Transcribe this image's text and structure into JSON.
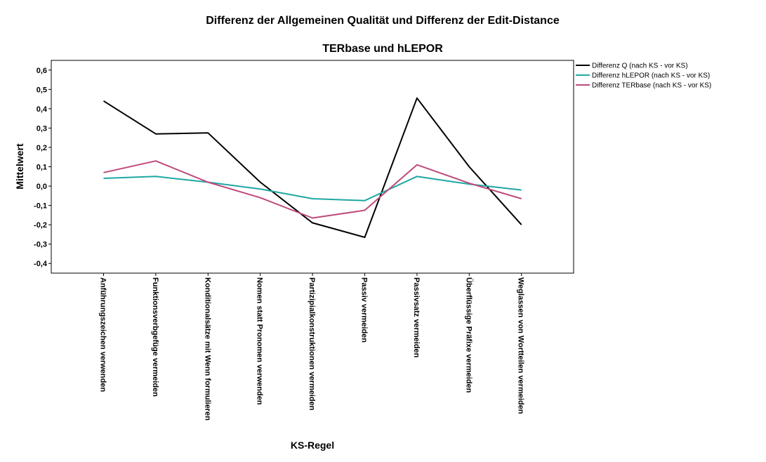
{
  "chart_data": {
    "type": "line",
    "title": "Differenz der Allgemeinen Qualität und Differenz der Edit-Distance",
    "subtitle": "TERbase und hLEPOR",
    "xlabel": "KS-Regel",
    "ylabel": "Mittelwert",
    "ylim": [
      -0.45,
      0.65
    ],
    "yticks": [
      -0.4,
      -0.3,
      -0.2,
      -0.1,
      0.0,
      0.1,
      0.2,
      0.3,
      0.4,
      0.5,
      0.6
    ],
    "ytick_labels": [
      "-0,4",
      "-0,3",
      "-0,2",
      "-0,1",
      "0,0",
      "0,1",
      "0,2",
      "0,3",
      "0,4",
      "0,5",
      "0,6"
    ],
    "grid": false,
    "legend_position": "right",
    "categories": [
      "Anführungszeichen verwenden",
      "Funktionsverbgefüge vermeiden",
      "Konditionalsätze mit Wenn formulieren",
      "Nomen statt Pronomen verwenden",
      "Partizipialkonstruktionen vermeiden",
      "Passiv vermeiden",
      "Passivsatz vermeiden",
      "Überflüssige Präfixe vermeiden",
      "Weglassen von Wortteilen vermeiden"
    ],
    "series": [
      {
        "name": "Differenz Q (nach KS - vor KS)",
        "color": "#000000",
        "values": [
          0.44,
          0.27,
          0.275,
          0.02,
          -0.19,
          -0.265,
          0.455,
          0.1,
          -0.2
        ]
      },
      {
        "name": "Differenz hLEPOR (nach KS - vor KS)",
        "color": "#1fa7a3",
        "values": [
          0.04,
          0.05,
          0.02,
          -0.015,
          -0.065,
          -0.075,
          0.05,
          0.01,
          -0.02
        ]
      },
      {
        "name": "Differenz TERbase (nach KS - vor KS)",
        "color": "#bf4a7c",
        "values": [
          0.07,
          0.13,
          0.02,
          -0.06,
          -0.165,
          -0.125,
          0.11,
          0.015,
          -0.065
        ]
      }
    ]
  }
}
